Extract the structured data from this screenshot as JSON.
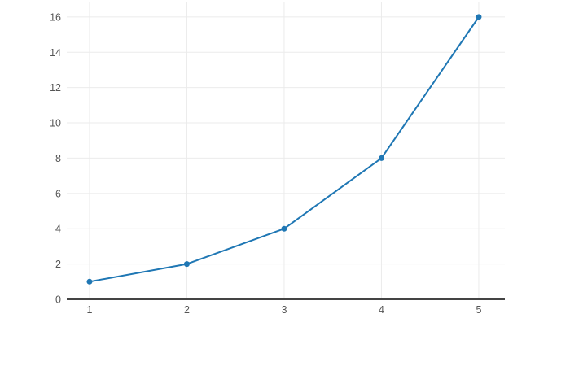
{
  "chart_data": {
    "type": "line",
    "title": "",
    "xlabel": "",
    "ylabel": "",
    "x": [
      1,
      2,
      3,
      4,
      5
    ],
    "series": [
      {
        "name": "trace-0",
        "values": [
          1,
          2,
          4,
          8,
          16
        ]
      }
    ],
    "xticks": [
      1,
      2,
      3,
      4,
      5
    ],
    "yticks": [
      0,
      2,
      4,
      6,
      8,
      10,
      12,
      14,
      16
    ],
    "xlim": [
      0.766,
      5.268
    ],
    "ylim": [
      0,
      16.87
    ],
    "grid": true,
    "legend_position": "none",
    "colors": {
      "line": "#1f77b4",
      "marker": "#1f77b4",
      "grid": "#ebebeb",
      "axis_line": "#444444",
      "tick_label": "#555555",
      "background": "#ffffff"
    }
  }
}
